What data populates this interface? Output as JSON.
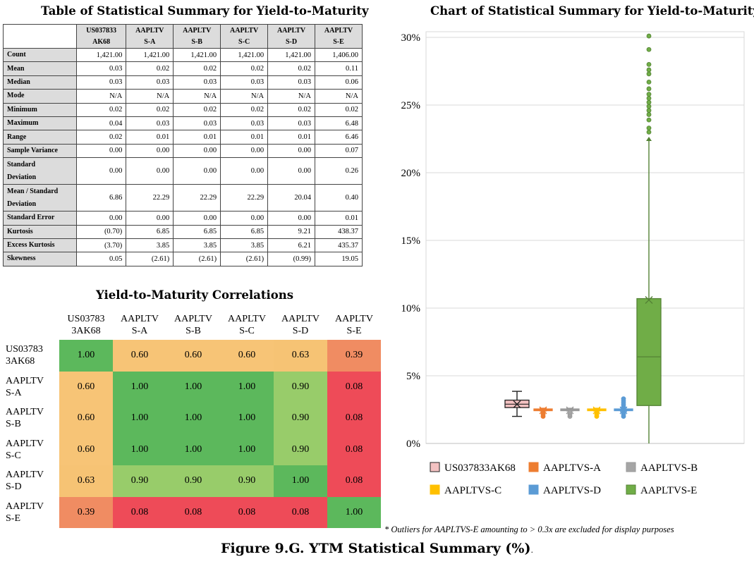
{
  "summary": {
    "title": "Table of Statistical Summary for Yield-to-Maturity",
    "columns": [
      [
        "US037833",
        "AK68"
      ],
      [
        "AAPLTV",
        "S-A"
      ],
      [
        "AAPLTV",
        "S-B"
      ],
      [
        "AAPLTV",
        "S-C"
      ],
      [
        "AAPLTV",
        "S-D"
      ],
      [
        "AAPLTV",
        "S-E"
      ]
    ],
    "rows": [
      {
        "label": [
          "Count"
        ],
        "values": [
          "1,421.00",
          "1,421.00",
          "1,421.00",
          "1,421.00",
          "1,421.00",
          "1,406.00"
        ]
      },
      {
        "label": [
          "Mean"
        ],
        "values": [
          "0.03",
          "0.02",
          "0.02",
          "0.02",
          "0.02",
          "0.11"
        ]
      },
      {
        "label": [
          "Median"
        ],
        "values": [
          "0.03",
          "0.03",
          "0.03",
          "0.03",
          "0.03",
          "0.06"
        ]
      },
      {
        "label": [
          "Mode"
        ],
        "values": [
          "N/A",
          "N/A",
          "N/A",
          "N/A",
          "N/A",
          "N/A"
        ]
      },
      {
        "label": [
          "Minimum"
        ],
        "values": [
          "0.02",
          "0.02",
          "0.02",
          "0.02",
          "0.02",
          "0.02"
        ]
      },
      {
        "label": [
          "Maximum"
        ],
        "values": [
          "0.04",
          "0.03",
          "0.03",
          "0.03",
          "0.03",
          "6.48"
        ]
      },
      {
        "label": [
          "Range"
        ],
        "values": [
          "0.02",
          "0.01",
          "0.01",
          "0.01",
          "0.01",
          "6.46"
        ]
      },
      {
        "label": [
          "Sample Variance"
        ],
        "values": [
          "0.00",
          "0.00",
          "0.00",
          "0.00",
          "0.00",
          "0.07"
        ]
      },
      {
        "label": [
          "Standard",
          "Deviation"
        ],
        "values": [
          "0.00",
          "0.00",
          "0.00",
          "0.00",
          "0.00",
          "0.26"
        ]
      },
      {
        "label": [
          "Mean / Standard",
          "Deviation"
        ],
        "values": [
          "6.86",
          "22.29",
          "22.29",
          "22.29",
          "20.04",
          "0.40"
        ]
      },
      {
        "label": [
          "Standard Error"
        ],
        "values": [
          "0.00",
          "0.00",
          "0.00",
          "0.00",
          "0.00",
          "0.01"
        ]
      },
      {
        "label": [
          "Kurtosis"
        ],
        "values": [
          "(0.70)",
          "6.85",
          "6.85",
          "6.85",
          "9.21",
          "438.37"
        ]
      },
      {
        "label": [
          "Excess Kurtosis"
        ],
        "values": [
          "(3.70)",
          "3.85",
          "3.85",
          "3.85",
          "6.21",
          "435.37"
        ]
      },
      {
        "label": [
          "Skewness"
        ],
        "values": [
          "0.05",
          "(2.61)",
          "(2.61)",
          "(2.61)",
          "(0.99)",
          "19.05"
        ]
      }
    ]
  },
  "correlations": {
    "title": "Yield-to-Maturity Correlations",
    "labels": [
      [
        "US03783",
        "3AK68"
      ],
      [
        "AAPLTV",
        "S-A"
      ],
      [
        "AAPLTV",
        "S-B"
      ],
      [
        "AAPLTV",
        "S-C"
      ],
      [
        "AAPLTV",
        "S-D"
      ],
      [
        "AAPLTV",
        "S-E"
      ]
    ],
    "matrix": [
      [
        "1.00",
        "0.60",
        "0.60",
        "0.60",
        "0.63",
        "0.39"
      ],
      [
        "0.60",
        "1.00",
        "1.00",
        "1.00",
        "0.90",
        "0.08"
      ],
      [
        "0.60",
        "1.00",
        "1.00",
        "1.00",
        "0.90",
        "0.08"
      ],
      [
        "0.60",
        "1.00",
        "1.00",
        "1.00",
        "0.90",
        "0.08"
      ],
      [
        "0.63",
        "0.90",
        "0.90",
        "0.90",
        "1.00",
        "0.08"
      ],
      [
        "0.39",
        "0.08",
        "0.08",
        "0.08",
        "0.08",
        "1.00"
      ]
    ]
  },
  "chart_data": {
    "type": "box",
    "title": "Chart of Statistical Summary for Yield-to-Maturity",
    "yticks": [
      "0%",
      "5%",
      "10%",
      "15%",
      "20%",
      "25%",
      "30%"
    ],
    "ylim": [
      0,
      30
    ],
    "series": [
      {
        "name": "US037833AK68",
        "color": "#f4c2c2",
        "stroke": "#222222",
        "min": 2.0,
        "q1": 2.65,
        "median": 2.9,
        "q3": 3.2,
        "max": 3.85,
        "mean": 2.9,
        "outliers": []
      },
      {
        "name": "AAPLTVS-A",
        "color": "#ed7d31",
        "stroke": "#ed7d31",
        "min": 2.4,
        "q1": 2.48,
        "median": 2.5,
        "q3": 2.55,
        "max": 2.6,
        "mean": 2.45,
        "outliers": [
          2.0,
          2.15,
          2.3
        ]
      },
      {
        "name": "AAPLTVS-B",
        "color": "#a5a5a5",
        "stroke": "#999999",
        "min": 2.4,
        "q1": 2.48,
        "median": 2.5,
        "q3": 2.55,
        "max": 2.6,
        "mean": 2.45,
        "outliers": [
          2.0,
          2.15,
          2.3
        ]
      },
      {
        "name": "AAPLTVS-C",
        "color": "#ffc000",
        "stroke": "#ffc000",
        "min": 2.4,
        "q1": 2.48,
        "median": 2.5,
        "q3": 2.55,
        "max": 2.6,
        "mean": 2.45,
        "outliers": [
          2.0,
          2.15,
          2.3
        ]
      },
      {
        "name": "AAPLTVS-D",
        "color": "#5b9bd5",
        "stroke": "#5b9bd5",
        "min": 2.35,
        "q1": 2.45,
        "median": 2.5,
        "q3": 2.55,
        "max": 2.65,
        "mean": 2.45,
        "outliers": [
          2.0,
          2.15,
          2.3,
          2.7,
          2.85,
          3.0,
          3.15,
          3.3
        ]
      },
      {
        "name": "AAPLTVS-E",
        "color": "#70ad47",
        "stroke": "#548235",
        "min": 0.0,
        "q1": 2.8,
        "median": 6.4,
        "q3": 10.7,
        "max": 22.5,
        "mean": 10.6,
        "outliers": [
          23.0,
          23.3,
          23.9,
          24.3,
          24.6,
          24.9,
          25.2,
          25.5,
          25.8,
          26.2,
          26.7,
          27.3,
          27.6,
          28.0,
          29.1,
          30.1
        ]
      }
    ],
    "legend": {
      "placement": "bottom",
      "columns": 3
    }
  },
  "footnote": "* Outliers for AAPLTVS-E amounting to > 0.3x are excluded for display purposes",
  "caption": "Figure 9.G. YTM Statistical Summary (%)"
}
